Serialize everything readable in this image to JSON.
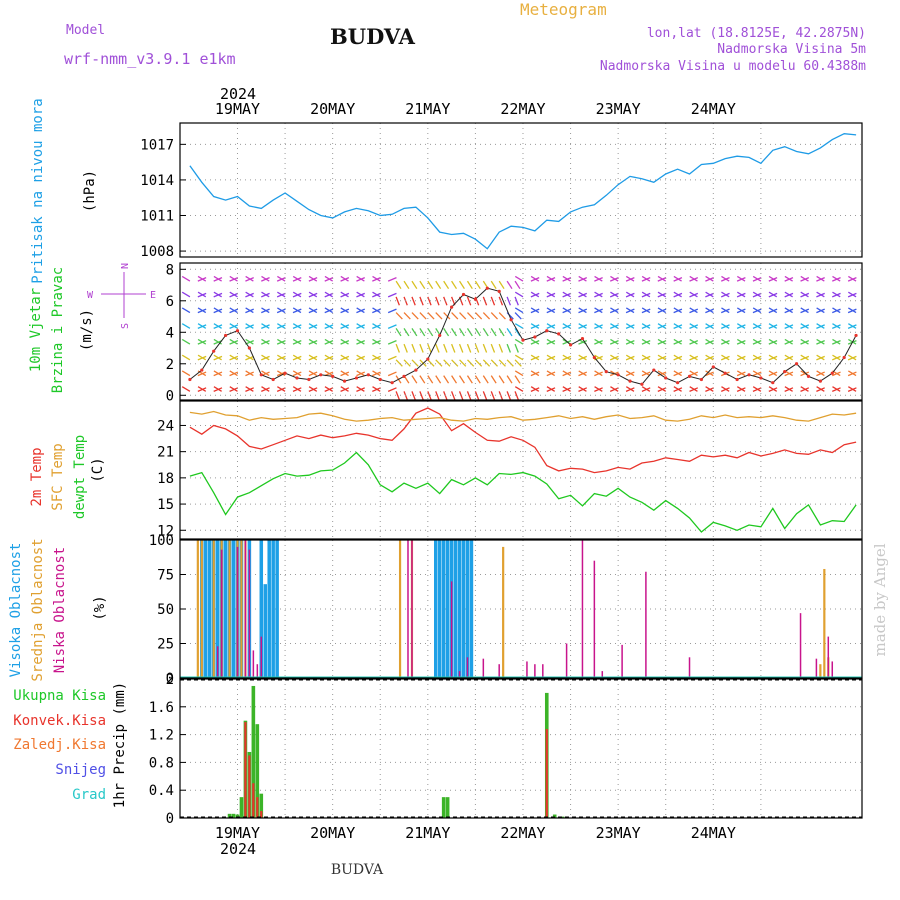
{
  "header": {
    "model_label": "Model",
    "model_name": "wrf-nmm_v3.9.1  e1km",
    "station": "BUDVA",
    "product": "Meteogram",
    "lonlat": "lon,lat (18.8125E, 42.2875N)",
    "elevation": "Nadmorska Visina 5m",
    "model_elevation": "Nadmorska Visina u modelu 60.4388m",
    "footer_station": "BUDVA",
    "credit": "made by Angel"
  },
  "time_axis": {
    "year": "2024",
    "days": [
      "19MAY",
      "20MAY",
      "21MAY",
      "22MAY",
      "23MAY",
      "24MAY"
    ]
  },
  "colors": {
    "pressure": "#1e9be6",
    "t2m": "#e8342c",
    "sfc": "#e0a030",
    "dewpoint": "#1fc81f",
    "high_cloud": "#1ea0e6",
    "mid_cloud": "#e0a030",
    "low_cloud": "#c8148c",
    "precip_total": "#3cb428",
    "precip_conv": "#e8342c",
    "precip_frz": "#f0782c",
    "snow": "#5050e6",
    "graupel": "#28c8c8"
  },
  "panel_labels": {
    "pressure": [
      "Pritisak na nivou mora",
      "(hPa)"
    ],
    "wind": [
      "10m Vjetar",
      "Brzina i Pravac",
      "(m/s)"
    ],
    "wind_rose": [
      "N",
      "W",
      "E",
      "S"
    ],
    "temp": [
      "2m Temp",
      "SFC Temp",
      "dewpt Temp",
      "(C)"
    ],
    "cloud": [
      "Visoka Oblacnost",
      "Srednja Oblacnost",
      "Niska Oblacnost",
      "(%)"
    ],
    "precip": [
      "Ukupna Kisa",
      "Konvek.Kisa",
      "Zaledj.Kisa",
      "Snijeg",
      "Grad",
      "1hr Precip (mm)"
    ]
  },
  "chart_data": [
    {
      "type": "line",
      "title": "Pritisak na nivou mora",
      "ylabel": "(hPa)",
      "xunit": "hours from 19MAY 00UTC",
      "ylim": [
        1007.5,
        1018.8
      ],
      "yticks": [
        1008,
        1011,
        1014,
        1017
      ],
      "series": [
        {
          "name": "Pritisak na nivou mora",
          "x": [
            -12,
            -9,
            -6,
            -3,
            0,
            3,
            6,
            9,
            12,
            15,
            18,
            21,
            24,
            27,
            30,
            33,
            36,
            39,
            42,
            45,
            48,
            51,
            54,
            57,
            60,
            63,
            66,
            69,
            72,
            75,
            78,
            81,
            84,
            87,
            90,
            93,
            96,
            99,
            102,
            105,
            108,
            111,
            114,
            117,
            120,
            123,
            126,
            129,
            132,
            135,
            138,
            141,
            144,
            147,
            150,
            153,
            156
          ],
          "values": [
            1015.2,
            1013.8,
            1012.6,
            1012.3,
            1012.6,
            1011.8,
            1011.6,
            1012.3,
            1012.9,
            1012.2,
            1011.5,
            1011.0,
            1010.8,
            1011.3,
            1011.6,
            1011.4,
            1011.0,
            1011.1,
            1011.6,
            1011.7,
            1010.8,
            1009.6,
            1009.4,
            1009.5,
            1009.0,
            1008.2,
            1009.6,
            1010.1,
            1010.0,
            1009.7,
            1010.6,
            1010.5,
            1011.3,
            1011.7,
            1011.9,
            1012.7,
            1013.6,
            1014.3,
            1014.1,
            1013.8,
            1014.5,
            1014.9,
            1014.5,
            1015.3,
            1015.4,
            1015.8,
            1016.0,
            1015.9,
            1015.4,
            1016.5,
            1016.8,
            1016.4,
            1016.2,
            1016.7,
            1017.4,
            1017.9,
            1017.8
          ]
        }
      ]
    },
    {
      "type": "line",
      "title": "10m Vjetar Brzina i Pravac",
      "ylabel": "(m/s)",
      "xunit": "hours from 19MAY 00UTC",
      "ylim": [
        -0.3,
        8.4
      ],
      "yticks": [
        0,
        2,
        4,
        6,
        8
      ],
      "series": [
        {
          "name": "Brzina",
          "x": [
            -12,
            -9,
            -6,
            -3,
            0,
            3,
            6,
            9,
            12,
            15,
            18,
            21,
            24,
            27,
            30,
            33,
            36,
            39,
            42,
            45,
            48,
            51,
            54,
            57,
            60,
            63,
            66,
            69,
            72,
            75,
            78,
            81,
            84,
            87,
            90,
            93,
            96,
            99,
            102,
            105,
            108,
            111,
            114,
            117,
            120,
            123,
            126,
            129,
            132,
            135,
            138,
            141,
            144,
            147,
            150,
            153,
            156
          ],
          "values": [
            1.0,
            1.6,
            2.8,
            3.8,
            4.1,
            3.0,
            1.3,
            1.0,
            1.4,
            1.1,
            1.0,
            1.3,
            1.2,
            0.9,
            1.1,
            1.3,
            1.0,
            0.8,
            1.2,
            1.6,
            2.3,
            3.8,
            5.6,
            6.4,
            6.1,
            6.8,
            6.6,
            4.8,
            3.5,
            3.7,
            4.1,
            3.9,
            3.2,
            3.6,
            2.4,
            1.5,
            1.3,
            0.9,
            0.7,
            1.6,
            1.1,
            0.8,
            1.2,
            1.0,
            1.8,
            1.4,
            1.0,
            1.3,
            1.1,
            0.8,
            1.5,
            2.0,
            1.2,
            0.9,
            1.4,
            2.4,
            3.8
          ]
        }
      ]
    },
    {
      "type": "line",
      "title": "2m Temp / SFC Temp / dewpt Temp",
      "ylabel": "(C)",
      "xunit": "hours from 19MAY 00UTC",
      "ylim": [
        11.0,
        26.8
      ],
      "yticks": [
        12,
        15,
        18,
        21,
        24
      ],
      "series": [
        {
          "name": "2m Temp",
          "x": [
            -12,
            -9,
            -6,
            -3,
            0,
            3,
            6,
            9,
            12,
            15,
            18,
            21,
            24,
            27,
            30,
            33,
            36,
            39,
            42,
            45,
            48,
            51,
            54,
            57,
            60,
            63,
            66,
            69,
            72,
            75,
            78,
            81,
            84,
            87,
            90,
            93,
            96,
            99,
            102,
            105,
            108,
            111,
            114,
            117,
            120,
            123,
            126,
            129,
            132,
            135,
            138,
            141,
            144,
            147,
            150,
            153,
            156
          ],
          "values": [
            23.8,
            23.0,
            24.0,
            23.6,
            22.8,
            21.6,
            21.3,
            21.8,
            22.3,
            22.8,
            22.5,
            22.9,
            22.6,
            22.8,
            23.1,
            22.9,
            22.5,
            22.3,
            23.6,
            25.4,
            26.0,
            25.3,
            23.4,
            24.2,
            23.2,
            22.3,
            22.2,
            22.7,
            22.3,
            21.5,
            19.4,
            18.8,
            19.1,
            19.0,
            18.6,
            18.8,
            19.2,
            19.0,
            19.7,
            19.9,
            20.3,
            20.1,
            19.9,
            20.6,
            20.4,
            20.6,
            20.3,
            20.9,
            20.5,
            20.8,
            21.2,
            20.8,
            20.7,
            21.2,
            20.9,
            21.8,
            22.1
          ]
        },
        {
          "name": "SFC Temp",
          "x": [
            -12,
            -9,
            -6,
            -3,
            0,
            3,
            6,
            9,
            12,
            15,
            18,
            21,
            24,
            27,
            30,
            33,
            36,
            39,
            42,
            45,
            48,
            51,
            54,
            57,
            60,
            63,
            66,
            69,
            72,
            75,
            78,
            81,
            84,
            87,
            90,
            93,
            96,
            99,
            102,
            105,
            108,
            111,
            114,
            117,
            120,
            123,
            126,
            129,
            132,
            135,
            138,
            141,
            144,
            147,
            150,
            153,
            156
          ],
          "values": [
            25.5,
            25.3,
            25.6,
            25.2,
            25.1,
            24.6,
            24.9,
            24.7,
            24.8,
            24.9,
            25.3,
            25.4,
            25.1,
            24.7,
            24.5,
            24.6,
            24.8,
            24.9,
            24.6,
            24.7,
            24.8,
            24.9,
            24.6,
            24.5,
            24.8,
            24.7,
            24.9,
            25.0,
            24.6,
            24.7,
            24.9,
            25.1,
            24.8,
            25.0,
            24.7,
            25.0,
            25.2,
            24.8,
            24.9,
            25.1,
            24.6,
            24.5,
            24.7,
            25.1,
            24.9,
            25.2,
            24.9,
            25.0,
            24.9,
            25.1,
            24.9,
            24.6,
            24.5,
            24.9,
            25.3,
            25.2,
            25.4
          ]
        },
        {
          "name": "dewpt Temp",
          "x": [
            -12,
            -9,
            -6,
            -3,
            0,
            3,
            6,
            9,
            12,
            15,
            18,
            21,
            24,
            27,
            30,
            33,
            36,
            39,
            42,
            45,
            48,
            51,
            54,
            57,
            60,
            63,
            66,
            69,
            72,
            75,
            78,
            81,
            84,
            87,
            90,
            93,
            96,
            99,
            102,
            105,
            108,
            111,
            114,
            117,
            120,
            123,
            126,
            129,
            132,
            135,
            138,
            141,
            144,
            147,
            150,
            153,
            156
          ],
          "values": [
            18.2,
            18.6,
            16.3,
            13.8,
            15.8,
            16.3,
            17.1,
            17.9,
            18.5,
            18.2,
            18.3,
            18.8,
            18.9,
            19.7,
            20.9,
            19.5,
            17.2,
            16.4,
            17.4,
            16.8,
            17.4,
            16.2,
            17.8,
            17.2,
            18.0,
            17.2,
            18.5,
            18.4,
            18.6,
            18.2,
            17.3,
            15.6,
            16.0,
            14.8,
            16.2,
            15.9,
            16.8,
            15.8,
            15.2,
            14.3,
            15.4,
            14.5,
            13.4,
            11.8,
            12.9,
            12.5,
            12.0,
            12.6,
            12.4,
            14.5,
            12.2,
            13.9,
            14.9,
            12.6,
            13.1,
            13.0,
            14.9
          ]
        }
      ]
    },
    {
      "type": "bar",
      "title": "Visoka / Srednja / Niska Oblacnost",
      "ylabel": "(%)",
      "xunit": "hours from 19MAY 00UTC",
      "ylim": [
        0,
        100
      ],
      "yticks": [
        0,
        25,
        50,
        75,
        100
      ],
      "series": [
        {
          "name": "Visoka Oblacnost",
          "x": [
            -9,
            -8,
            -7,
            -6,
            -5,
            -4,
            -3,
            -2,
            -1,
            0,
            1,
            3,
            6,
            7,
            8,
            9,
            10,
            50,
            51,
            52,
            53,
            54,
            55,
            56,
            57,
            58,
            59
          ],
          "values": [
            100,
            100,
            100,
            100,
            100,
            100,
            100,
            100,
            100,
            100,
            100,
            100,
            100,
            68,
            100,
            100,
            100,
            100,
            100,
            100,
            100,
            100,
            100,
            100,
            100,
            100,
            100
          ]
        },
        {
          "name": "Srednja Oblacnost",
          "x": [
            -10,
            -9,
            -6,
            -4,
            -2,
            0,
            1,
            2,
            41,
            44,
            67,
            147,
            148,
            149
          ],
          "values": [
            100,
            100,
            100,
            100,
            100,
            100,
            100,
            100,
            100,
            100,
            95,
            10,
            79,
            15
          ]
        },
        {
          "name": "Niska Oblacnost",
          "x": [
            -5,
            -4,
            0,
            2,
            3,
            4,
            5,
            6,
            43,
            44,
            54,
            56,
            58,
            62,
            66,
            73,
            75,
            77,
            83,
            87,
            90,
            92,
            97,
            103,
            114,
            142,
            146,
            149,
            150
          ],
          "values": [
            23,
            93,
            95,
            100,
            93,
            20,
            10,
            30,
            100,
            100,
            70,
            5,
            15,
            14,
            10,
            12,
            10,
            10,
            25,
            100,
            85,
            5,
            24,
            77,
            15,
            47,
            14,
            30,
            12
          ]
        }
      ]
    },
    {
      "type": "bar",
      "title": "1hr Precip",
      "ylabel": "1hr Precip (mm)",
      "xunit": "hours from 19MAY 00UTC",
      "ylim": [
        0,
        2.0
      ],
      "yticks": [
        0,
        0.4,
        0.8,
        1.2,
        1.6,
        2
      ],
      "series": [
        {
          "name": "Ukupna Kisa",
          "x": [
            -2,
            -1,
            0,
            1,
            2,
            3,
            4,
            5,
            6,
            7,
            8,
            9,
            10,
            11,
            52,
            53,
            78,
            80,
            82
          ],
          "values": [
            0.06,
            0.06,
            0.05,
            0.3,
            1.4,
            0.95,
            1.9,
            1.35,
            0.35,
            0,
            0,
            0,
            0,
            0,
            0.3,
            0.3,
            1.8,
            0.05,
            0.02
          ]
        },
        {
          "name": "Konvek.Kisa",
          "x": [
            2,
            3,
            4,
            5,
            6,
            78
          ],
          "values": [
            1.38,
            0.9,
            0.5,
            0.3,
            0.1,
            1.28
          ]
        },
        {
          "name": "Zaledj.Kisa",
          "x": [],
          "values": []
        },
        {
          "name": "Snijeg",
          "x": [],
          "values": []
        },
        {
          "name": "Grad",
          "x": [],
          "values": []
        }
      ]
    }
  ]
}
